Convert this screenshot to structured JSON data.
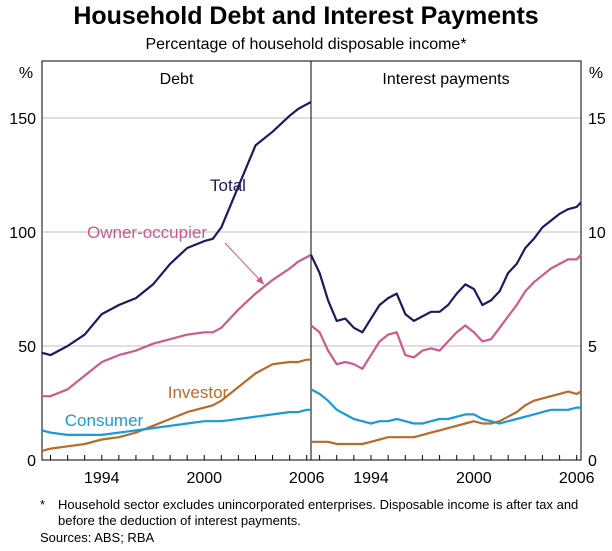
{
  "title": "Household Debt and Interest Payments",
  "subtitle": "Percentage of household disposable income*",
  "footnote_mark": "*",
  "footnote": "Household sector excludes unincorporated enterprises. Disposable income is after tax and before the deduction of interest payments.",
  "sources": "Sources: ABS; RBA",
  "chart_data": [
    {
      "type": "line",
      "title": "Debt",
      "ylabel": "%",
      "ylim": [
        0,
        175
      ],
      "yticks": [
        0,
        50,
        100,
        150
      ],
      "xlim": [
        1990.5,
        2006.25
      ],
      "xticks": [
        1994,
        2000,
        2006
      ],
      "grid": true,
      "series": [
        {
          "name": "Total",
          "color": "#1c1a5e",
          "x": [
            1990.5,
            1991,
            1992,
            1993,
            1994,
            1995,
            1996,
            1997,
            1998,
            1999,
            2000,
            2000.5,
            2001,
            2002,
            2003,
            2004,
            2005,
            2005.5,
            2006,
            2006.25
          ],
          "y": [
            47,
            46,
            50,
            55,
            64,
            68,
            71,
            77,
            86,
            93,
            96,
            97,
            102,
            120,
            138,
            144,
            151,
            154,
            156,
            157
          ]
        },
        {
          "name": "Owner-occupier",
          "color": "#cc5a8c",
          "x": [
            1990.5,
            1991,
            1992,
            1993,
            1994,
            1995,
            1996,
            1997,
            1998,
            1999,
            2000,
            2000.5,
            2001,
            2002,
            2003,
            2004,
            2005,
            2005.5,
            2006,
            2006.25
          ],
          "y": [
            28,
            28,
            31,
            37,
            43,
            46,
            48,
            51,
            53,
            55,
            56,
            56,
            58,
            66,
            73,
            79,
            84,
            87,
            89,
            90
          ]
        },
        {
          "name": "Investor",
          "color": "#b86a2a",
          "x": [
            1990.5,
            1991,
            1992,
            1993,
            1994,
            1995,
            1996,
            1997,
            1998,
            1999,
            2000,
            2000.5,
            2001,
            2002,
            2003,
            2004,
            2005,
            2005.5,
            2006,
            2006.25
          ],
          "y": [
            4,
            5,
            6,
            7,
            9,
            10,
            12,
            15,
            18,
            21,
            23,
            24,
            26,
            32,
            38,
            42,
            43,
            43,
            44,
            44
          ]
        },
        {
          "name": "Consumer",
          "color": "#1a9ad6",
          "x": [
            1990.5,
            1991,
            1992,
            1993,
            1994,
            1995,
            1996,
            1997,
            1998,
            1999,
            2000,
            2000.5,
            2001,
            2002,
            2003,
            2004,
            2005,
            2005.5,
            2006,
            2006.25
          ],
          "y": [
            13,
            12,
            11,
            11,
            11,
            12,
            13,
            14,
            15,
            16,
            17,
            17,
            17,
            18,
            19,
            20,
            21,
            21,
            22,
            22
          ]
        }
      ],
      "annotations": [
        {
          "text": "Total",
          "series": "Total"
        },
        {
          "text": "Owner-occupier",
          "series": "Owner-occupier",
          "arrow_to": [
            2003.5,
            77
          ]
        },
        {
          "text": "Investor",
          "series": "Investor"
        },
        {
          "text": "Consumer",
          "series": "Consumer"
        }
      ]
    },
    {
      "type": "line",
      "title": "Interest payments",
      "ylabel": "%",
      "ylim": [
        0,
        17.5
      ],
      "yticks": [
        0,
        5,
        10,
        15
      ],
      "xlim": [
        1990.5,
        2006.25
      ],
      "xticks": [
        1994,
        2000,
        2006
      ],
      "grid": true,
      "series": [
        {
          "name": "Total",
          "color": "#1c1a5e",
          "x": [
            1990.5,
            1991,
            1991.5,
            1992,
            1992.5,
            1993,
            1993.5,
            1994,
            1994.5,
            1995,
            1995.5,
            1996,
            1996.5,
            1997,
            1997.5,
            1998,
            1998.5,
            1999,
            1999.5,
            2000,
            2000.5,
            2001,
            2001.5,
            2002,
            2002.5,
            2003,
            2003.5,
            2004,
            2004.5,
            2005,
            2005.5,
            2006,
            2006.25
          ],
          "y": [
            9.0,
            8.2,
            7.0,
            6.1,
            6.2,
            5.8,
            5.6,
            6.2,
            6.8,
            7.1,
            7.3,
            6.4,
            6.1,
            6.3,
            6.5,
            6.5,
            6.8,
            7.3,
            7.7,
            7.5,
            6.8,
            7.0,
            7.4,
            8.2,
            8.6,
            9.3,
            9.7,
            10.2,
            10.5,
            10.8,
            11.0,
            11.1,
            11.3
          ]
        },
        {
          "name": "Owner-occupier",
          "color": "#cc5a8c",
          "x": [
            1990.5,
            1991,
            1991.5,
            1992,
            1992.5,
            1993,
            1993.5,
            1994,
            1994.5,
            1995,
            1995.5,
            1996,
            1996.5,
            1997,
            1997.5,
            1998,
            1998.5,
            1999,
            1999.5,
            2000,
            2000.5,
            2001,
            2001.5,
            2002,
            2002.5,
            2003,
            2003.5,
            2004,
            2004.5,
            2005,
            2005.5,
            2006,
            2006.25
          ],
          "y": [
            5.9,
            5.6,
            4.8,
            4.2,
            4.3,
            4.2,
            4.0,
            4.6,
            5.2,
            5.5,
            5.6,
            4.6,
            4.5,
            4.8,
            4.9,
            4.8,
            5.2,
            5.6,
            5.9,
            5.6,
            5.2,
            5.3,
            5.8,
            6.3,
            6.8,
            7.4,
            7.8,
            8.1,
            8.4,
            8.6,
            8.8,
            8.8,
            9.0
          ]
        },
        {
          "name": "Investor",
          "color": "#b86a2a",
          "x": [
            1990.5,
            1991,
            1991.5,
            1992,
            1992.5,
            1993,
            1993.5,
            1994,
            1994.5,
            1995,
            1995.5,
            1996,
            1996.5,
            1997,
            1997.5,
            1998,
            1998.5,
            1999,
            1999.5,
            2000,
            2000.5,
            2001,
            2001.5,
            2002,
            2002.5,
            2003,
            2003.5,
            2004,
            2004.5,
            2005,
            2005.5,
            2006,
            2006.25
          ],
          "y": [
            0.8,
            0.8,
            0.8,
            0.7,
            0.7,
            0.7,
            0.7,
            0.8,
            0.9,
            1.0,
            1.0,
            1.0,
            1.0,
            1.1,
            1.2,
            1.3,
            1.4,
            1.5,
            1.6,
            1.7,
            1.6,
            1.6,
            1.7,
            1.9,
            2.1,
            2.4,
            2.6,
            2.7,
            2.8,
            2.9,
            3.0,
            2.9,
            3.0
          ]
        },
        {
          "name": "Consumer",
          "color": "#1a9ad6",
          "x": [
            1990.5,
            1991,
            1991.5,
            1992,
            1992.5,
            1993,
            1993.5,
            1994,
            1994.5,
            1995,
            1995.5,
            1996,
            1996.5,
            1997,
            1997.5,
            1998,
            1998.5,
            1999,
            1999.5,
            2000,
            2000.5,
            2001,
            2001.5,
            2002,
            2002.5,
            2003,
            2003.5,
            2004,
            2004.5,
            2005,
            2005.5,
            2006,
            2006.25
          ],
          "y": [
            3.1,
            2.9,
            2.6,
            2.2,
            2.0,
            1.8,
            1.7,
            1.6,
            1.7,
            1.7,
            1.8,
            1.7,
            1.6,
            1.6,
            1.7,
            1.8,
            1.8,
            1.9,
            2.0,
            2.0,
            1.8,
            1.7,
            1.6,
            1.7,
            1.8,
            1.9,
            2.0,
            2.1,
            2.2,
            2.2,
            2.2,
            2.3,
            2.3
          ]
        }
      ]
    }
  ]
}
